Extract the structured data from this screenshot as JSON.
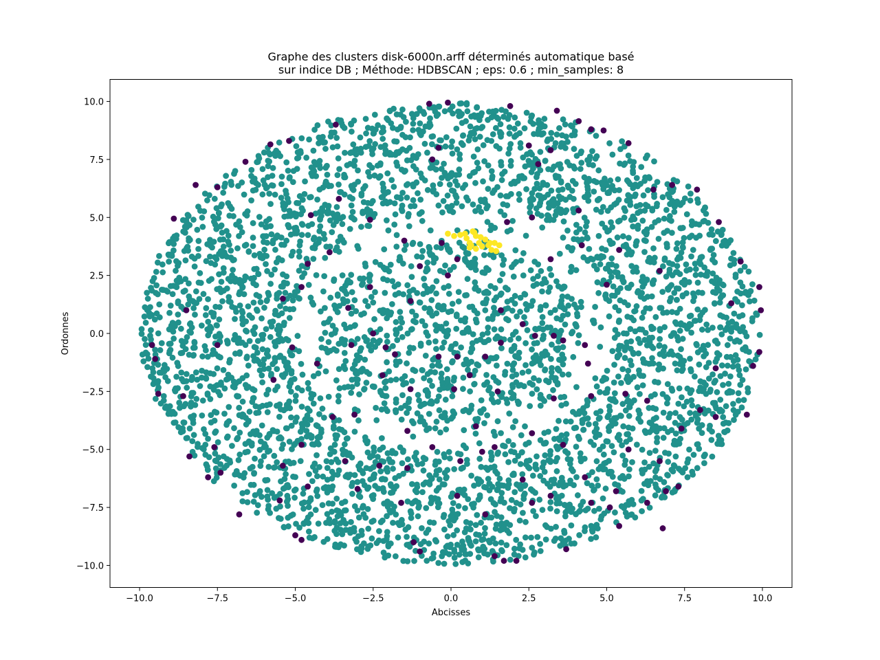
{
  "chart_data": {
    "type": "scatter",
    "title_line1": "Graphe des clusters disk-6000n.arff déterminés automatique basé",
    "title_line2": "sur indice DB ; Méthode: HDBSCAN ; eps: 0.6 ; min_samples: 8",
    "xlabel": "Abcisses",
    "ylabel": "Ordonnes",
    "xlim": [
      -10.95,
      10.95
    ],
    "ylim": [
      -10.95,
      10.95
    ],
    "xticks": [
      -10.0,
      -7.5,
      -5.0,
      -2.5,
      0.0,
      2.5,
      5.0,
      7.5,
      10.0
    ],
    "yticks": [
      -10.0,
      -7.5,
      -5.0,
      -2.5,
      0.0,
      2.5,
      5.0,
      7.5,
      10.0
    ],
    "xtick_labels": [
      "−10.0",
      "−7.5",
      "−5.0",
      "−2.5",
      "0.0",
      "2.5",
      "5.0",
      "7.5",
      "10.0"
    ],
    "ytick_labels": [
      "−10.0",
      "−7.5",
      "−5.0",
      "−2.5",
      "0.0",
      "2.5",
      "5.0",
      "7.5",
      "10.0"
    ],
    "grid": false,
    "legend": "none",
    "colors": {
      "main_cluster": "#21918c",
      "noise": "#440154",
      "small_cluster": "#fde725"
    },
    "series": [
      {
        "color": "#fde725",
        "points": [
          [
            -0.1,
            4.3
          ],
          [
            0.1,
            4.2
          ],
          [
            0.3,
            4.25
          ],
          [
            0.5,
            4.1
          ],
          [
            0.6,
            3.9
          ],
          [
            0.7,
            4.4
          ],
          [
            0.8,
            4.2
          ],
          [
            0.6,
            3.7
          ],
          [
            0.8,
            3.65
          ],
          [
            0.9,
            3.9
          ],
          [
            1.0,
            3.75
          ],
          [
            1.1,
            4.05
          ],
          [
            1.2,
            3.8
          ],
          [
            1.3,
            3.6
          ],
          [
            1.4,
            3.9
          ],
          [
            1.55,
            3.8
          ],
          [
            1.45,
            3.55
          ],
          [
            0.75,
            4.35
          ],
          [
            0.95,
            4.15
          ],
          [
            0.65,
            3.8
          ],
          [
            1.25,
            3.9
          ],
          [
            0.45,
            4.3
          ]
        ]
      },
      {
        "color": "#440154",
        "points": [
          [
            -0.7,
            9.9
          ],
          [
            -0.1,
            9.95
          ],
          [
            1.9,
            9.8
          ],
          [
            3.4,
            9.6
          ],
          [
            4.1,
            9.15
          ],
          [
            4.5,
            8.8
          ],
          [
            4.9,
            8.75
          ],
          [
            5.7,
            8.2
          ],
          [
            2.5,
            8.1
          ],
          [
            -5.8,
            8.15
          ],
          [
            -6.6,
            7.4
          ],
          [
            -0.4,
            8.0
          ],
          [
            -0.6,
            7.5
          ],
          [
            -8.2,
            6.4
          ],
          [
            -8.9,
            4.95
          ],
          [
            -3.6,
            5.8
          ],
          [
            -2.6,
            4.9
          ],
          [
            -1.5,
            4.0
          ],
          [
            -0.3,
            3.9
          ],
          [
            0.2,
            3.2
          ],
          [
            1.8,
            4.8
          ],
          [
            2.6,
            5.0
          ],
          [
            4.1,
            5.3
          ],
          [
            6.5,
            6.2
          ],
          [
            7.1,
            6.4
          ],
          [
            7.9,
            6.2
          ],
          [
            8.6,
            4.8
          ],
          [
            9.3,
            3.1
          ],
          [
            9.9,
            2.0
          ],
          [
            9.95,
            1.0
          ],
          [
            9.0,
            1.3
          ],
          [
            5.0,
            2.1
          ],
          [
            3.2,
            3.2
          ],
          [
            -0.1,
            2.5
          ],
          [
            -1.3,
            1.4
          ],
          [
            -3.3,
            1.1
          ],
          [
            -4.8,
            2.0
          ],
          [
            -5.4,
            1.5
          ],
          [
            -8.5,
            1.0
          ],
          [
            -9.6,
            -0.5
          ],
          [
            -9.5,
            -1.1
          ],
          [
            -7.5,
            -0.5
          ],
          [
            -5.1,
            -0.6
          ],
          [
            -4.3,
            -1.3
          ],
          [
            -3.2,
            -0.5
          ],
          [
            -2.5,
            0.0
          ],
          [
            -1.8,
            -0.9
          ],
          [
            -0.4,
            -1.0
          ],
          [
            0.2,
            -1.0
          ],
          [
            1.6,
            -0.4
          ],
          [
            2.7,
            -0.1
          ],
          [
            3.3,
            -0.1
          ],
          [
            3.6,
            -0.3
          ],
          [
            4.3,
            -0.5
          ],
          [
            4.4,
            -1.3
          ],
          [
            8.5,
            -1.5
          ],
          [
            9.7,
            -1.4
          ],
          [
            9.9,
            -0.8
          ],
          [
            -9.4,
            -2.6
          ],
          [
            -8.6,
            -2.7
          ],
          [
            -5.7,
            -2.0
          ],
          [
            -2.2,
            -1.8
          ],
          [
            -1.3,
            -2.4
          ],
          [
            0.1,
            -2.4
          ],
          [
            1.5,
            -2.5
          ],
          [
            3.3,
            -2.8
          ],
          [
            4.5,
            -2.7
          ],
          [
            5.6,
            -2.6
          ],
          [
            6.3,
            -2.9
          ],
          [
            8.0,
            -3.3
          ],
          [
            8.5,
            -3.6
          ],
          [
            9.5,
            -3.5
          ],
          [
            -3.8,
            -3.6
          ],
          [
            -3.1,
            -3.5
          ],
          [
            -1.4,
            -4.2
          ],
          [
            -0.6,
            -4.9
          ],
          [
            0.8,
            -4.0
          ],
          [
            1.4,
            -4.9
          ],
          [
            2.6,
            -4.3
          ],
          [
            3.6,
            -4.8
          ],
          [
            5.7,
            -5.0
          ],
          [
            7.4,
            -4.1
          ],
          [
            -7.6,
            -4.9
          ],
          [
            -8.4,
            -5.3
          ],
          [
            -7.8,
            -6.2
          ],
          [
            -7.4,
            -6.0
          ],
          [
            -5.4,
            -5.7
          ],
          [
            -4.8,
            -4.8
          ],
          [
            -3.4,
            -5.5
          ],
          [
            -2.3,
            -5.7
          ],
          [
            -1.4,
            -5.8
          ],
          [
            0.3,
            -5.5
          ],
          [
            1.0,
            -5.1
          ],
          [
            2.3,
            -6.3
          ],
          [
            4.3,
            -6.2
          ],
          [
            5.3,
            -6.8
          ],
          [
            6.7,
            -5.5
          ],
          [
            7.3,
            -6.6
          ],
          [
            -6.8,
            -7.8
          ],
          [
            -5.5,
            -7.2
          ],
          [
            -4.6,
            -6.6
          ],
          [
            -3.0,
            -6.7
          ],
          [
            -1.6,
            -7.3
          ],
          [
            0.2,
            -7.0
          ],
          [
            1.1,
            -7.8
          ],
          [
            2.6,
            -7.3
          ],
          [
            3.2,
            -7.0
          ],
          [
            4.5,
            -7.3
          ],
          [
            5.1,
            -7.5
          ],
          [
            6.3,
            -7.3
          ],
          [
            6.9,
            -6.8
          ],
          [
            -5.0,
            -8.7
          ],
          [
            -4.8,
            -8.9
          ],
          [
            -1.2,
            -9.0
          ],
          [
            -1.0,
            -9.4
          ],
          [
            1.4,
            -9.6
          ],
          [
            1.7,
            -9.8
          ],
          [
            2.1,
            -9.8
          ],
          [
            3.7,
            -9.3
          ],
          [
            5.4,
            -8.3
          ],
          [
            6.8,
            -8.4
          ],
          [
            -7.5,
            6.3
          ],
          [
            -4.5,
            5.1
          ],
          [
            -4.6,
            3.0
          ],
          [
            -2.6,
            2.0
          ],
          [
            -1.0,
            2.9
          ],
          [
            1.6,
            1.0
          ],
          [
            2.3,
            0.4
          ],
          [
            6.7,
            2.7
          ],
          [
            5.4,
            3.6
          ],
          [
            4.2,
            3.8
          ],
          [
            3.2,
            7.9
          ],
          [
            2.8,
            7.3
          ],
          [
            -3.7,
            9.0
          ],
          [
            -5.2,
            8.3
          ],
          [
            -3.9,
            3.5
          ],
          [
            1.1,
            -1.0
          ],
          [
            -2.1,
            -0.6
          ],
          [
            0.6,
            -1.8
          ]
        ]
      }
    ]
  }
}
